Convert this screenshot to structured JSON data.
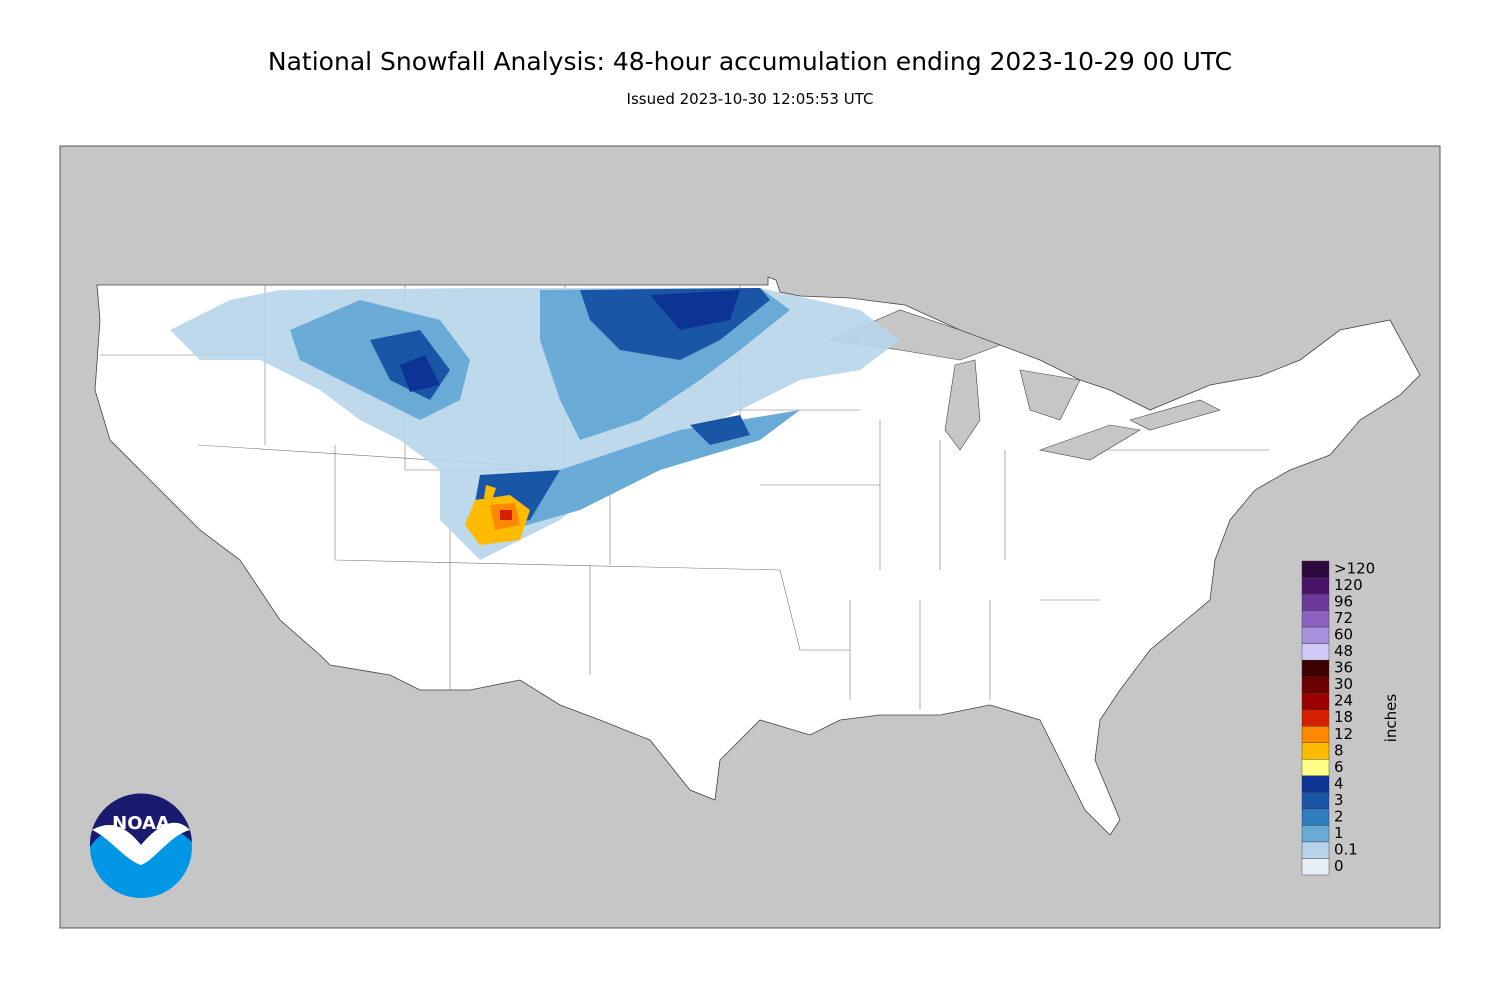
{
  "title": "National Snowfall Analysis: 48-hour accumulation ending 2023-10-29 00 UTC",
  "subtitle": "Issued 2023-10-30 12:05:53 UTC",
  "logo": {
    "text": "NOAA"
  },
  "legend": {
    "unit": "inches",
    "items": [
      {
        "label": ">120",
        "color": "#2d0a3e"
      },
      {
        "label": "120",
        "color": "#4a1468"
      },
      {
        "label": "96",
        "color": "#6b3a9b"
      },
      {
        "label": "72",
        "color": "#8b62bf"
      },
      {
        "label": "60",
        "color": "#a891dc"
      },
      {
        "label": "48",
        "color": "#cfcaf7"
      },
      {
        "label": "36",
        "color": "#3d0000"
      },
      {
        "label": "30",
        "color": "#6b0000"
      },
      {
        "label": "24",
        "color": "#9c0000"
      },
      {
        "label": "18",
        "color": "#d42000"
      },
      {
        "label": "12",
        "color": "#ff8800"
      },
      {
        "label": "8",
        "color": "#ffbb00"
      },
      {
        "label": "6",
        "color": "#ffff88"
      },
      {
        "label": "4",
        "color": "#0d3394"
      },
      {
        "label": "3",
        "color": "#1a56a6"
      },
      {
        "label": "2",
        "color": "#2f7cc0"
      },
      {
        "label": "1",
        "color": "#6aaad6"
      },
      {
        "label": "0.1",
        "color": "#b7d4ea"
      },
      {
        "label": "0",
        "color": "#e6eef6"
      }
    ]
  }
}
